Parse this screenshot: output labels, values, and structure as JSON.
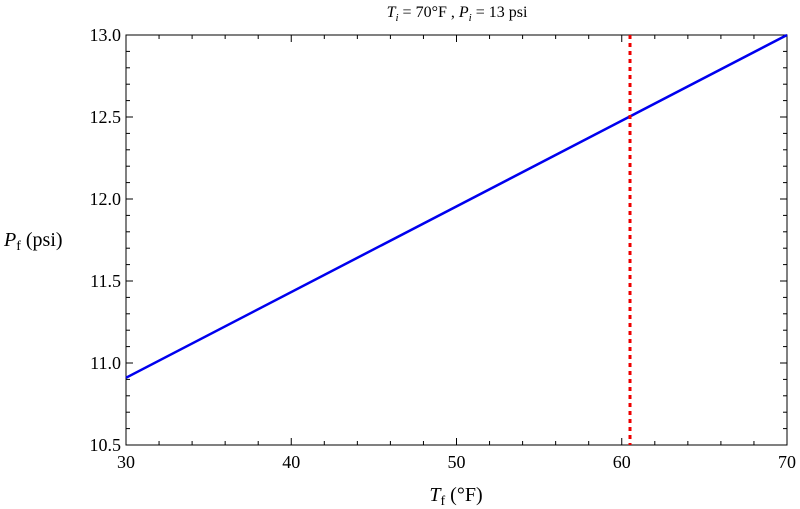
{
  "chart_data": {
    "type": "line",
    "title": {
      "t_symbol": "T",
      "t_sub": "i",
      "t_value": " = 70°F , ",
      "p_symbol": "P",
      "p_sub": "i",
      "p_value": " = 13 psi"
    },
    "xlabel": {
      "symbol": "T",
      "sub": "f",
      "unit": " (°F)"
    },
    "ylabel": {
      "symbol": "P",
      "sub": "f",
      "unit": " (psi)"
    },
    "xlim": [
      30,
      70
    ],
    "ylim": [
      10.5,
      13.0
    ],
    "x_ticks": [
      "30",
      "40",
      "50",
      "60",
      "70"
    ],
    "y_ticks": [
      "10.5",
      "11.0",
      "11.5",
      "12.0",
      "12.5",
      "13.0"
    ],
    "grid": false,
    "series": [
      {
        "x": [
          30,
          70
        ],
        "y": [
          10.91,
          13.0
        ],
        "color": "#0000ee",
        "style": "solid"
      }
    ],
    "vertical_marker": {
      "x": 60.5,
      "color": "#ee0000",
      "style": "dotted"
    }
  }
}
